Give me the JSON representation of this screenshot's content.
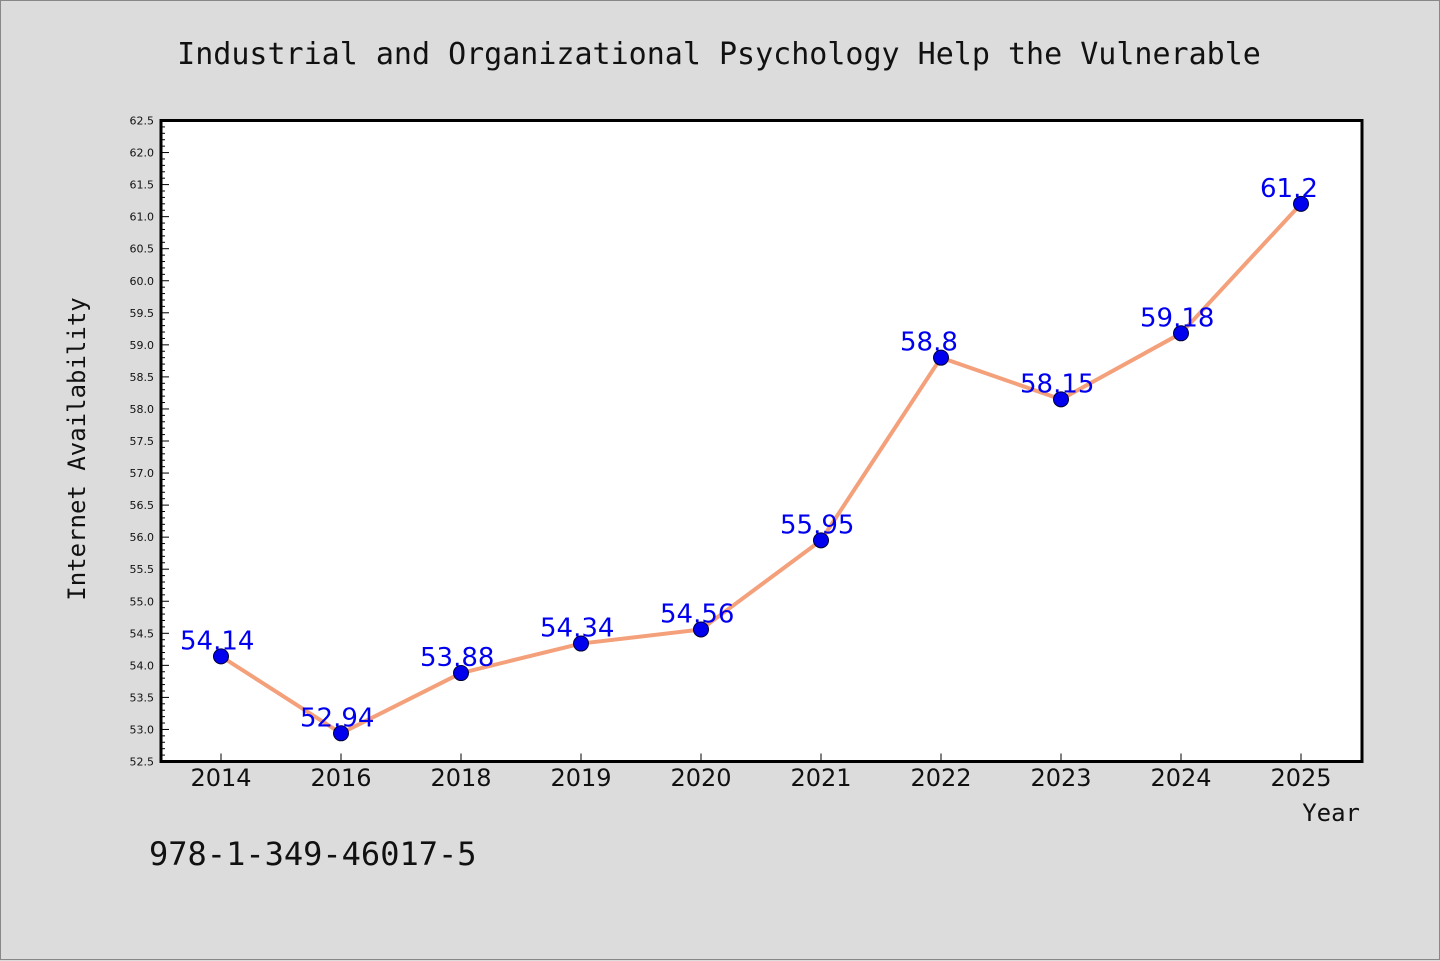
{
  "chart_data": {
    "type": "line",
    "title": "Industrial and Organizational Psychology Help the Vulnerable",
    "xlabel": "Year",
    "ylabel": "Internet Availability",
    "categories": [
      "2014",
      "2016",
      "2018",
      "2019",
      "2020",
      "2021",
      "2022",
      "2023",
      "2024",
      "2025"
    ],
    "series": [
      {
        "values": [
          54.14,
          52.94,
          53.88,
          54.34,
          54.56,
          55.95,
          58.8,
          58.15,
          59.18,
          61.2
        ],
        "labels": [
          "54.14",
          "52.94",
          "53.88",
          "54.34",
          "54.56",
          "55.95",
          "58.8",
          "58.15",
          "59.18",
          "61.2"
        ],
        "line_color": "#f4a07a",
        "marker_color": "#0000ee",
        "label_color": "#0000ee"
      }
    ],
    "ylim": [
      52.5,
      62.5
    ],
    "ytick_step": 0.5,
    "grid": false,
    "background": "#ffffff",
    "page_background": "#dcdcdc"
  },
  "footer": {
    "isbn": "978-1-349-46017-5"
  }
}
